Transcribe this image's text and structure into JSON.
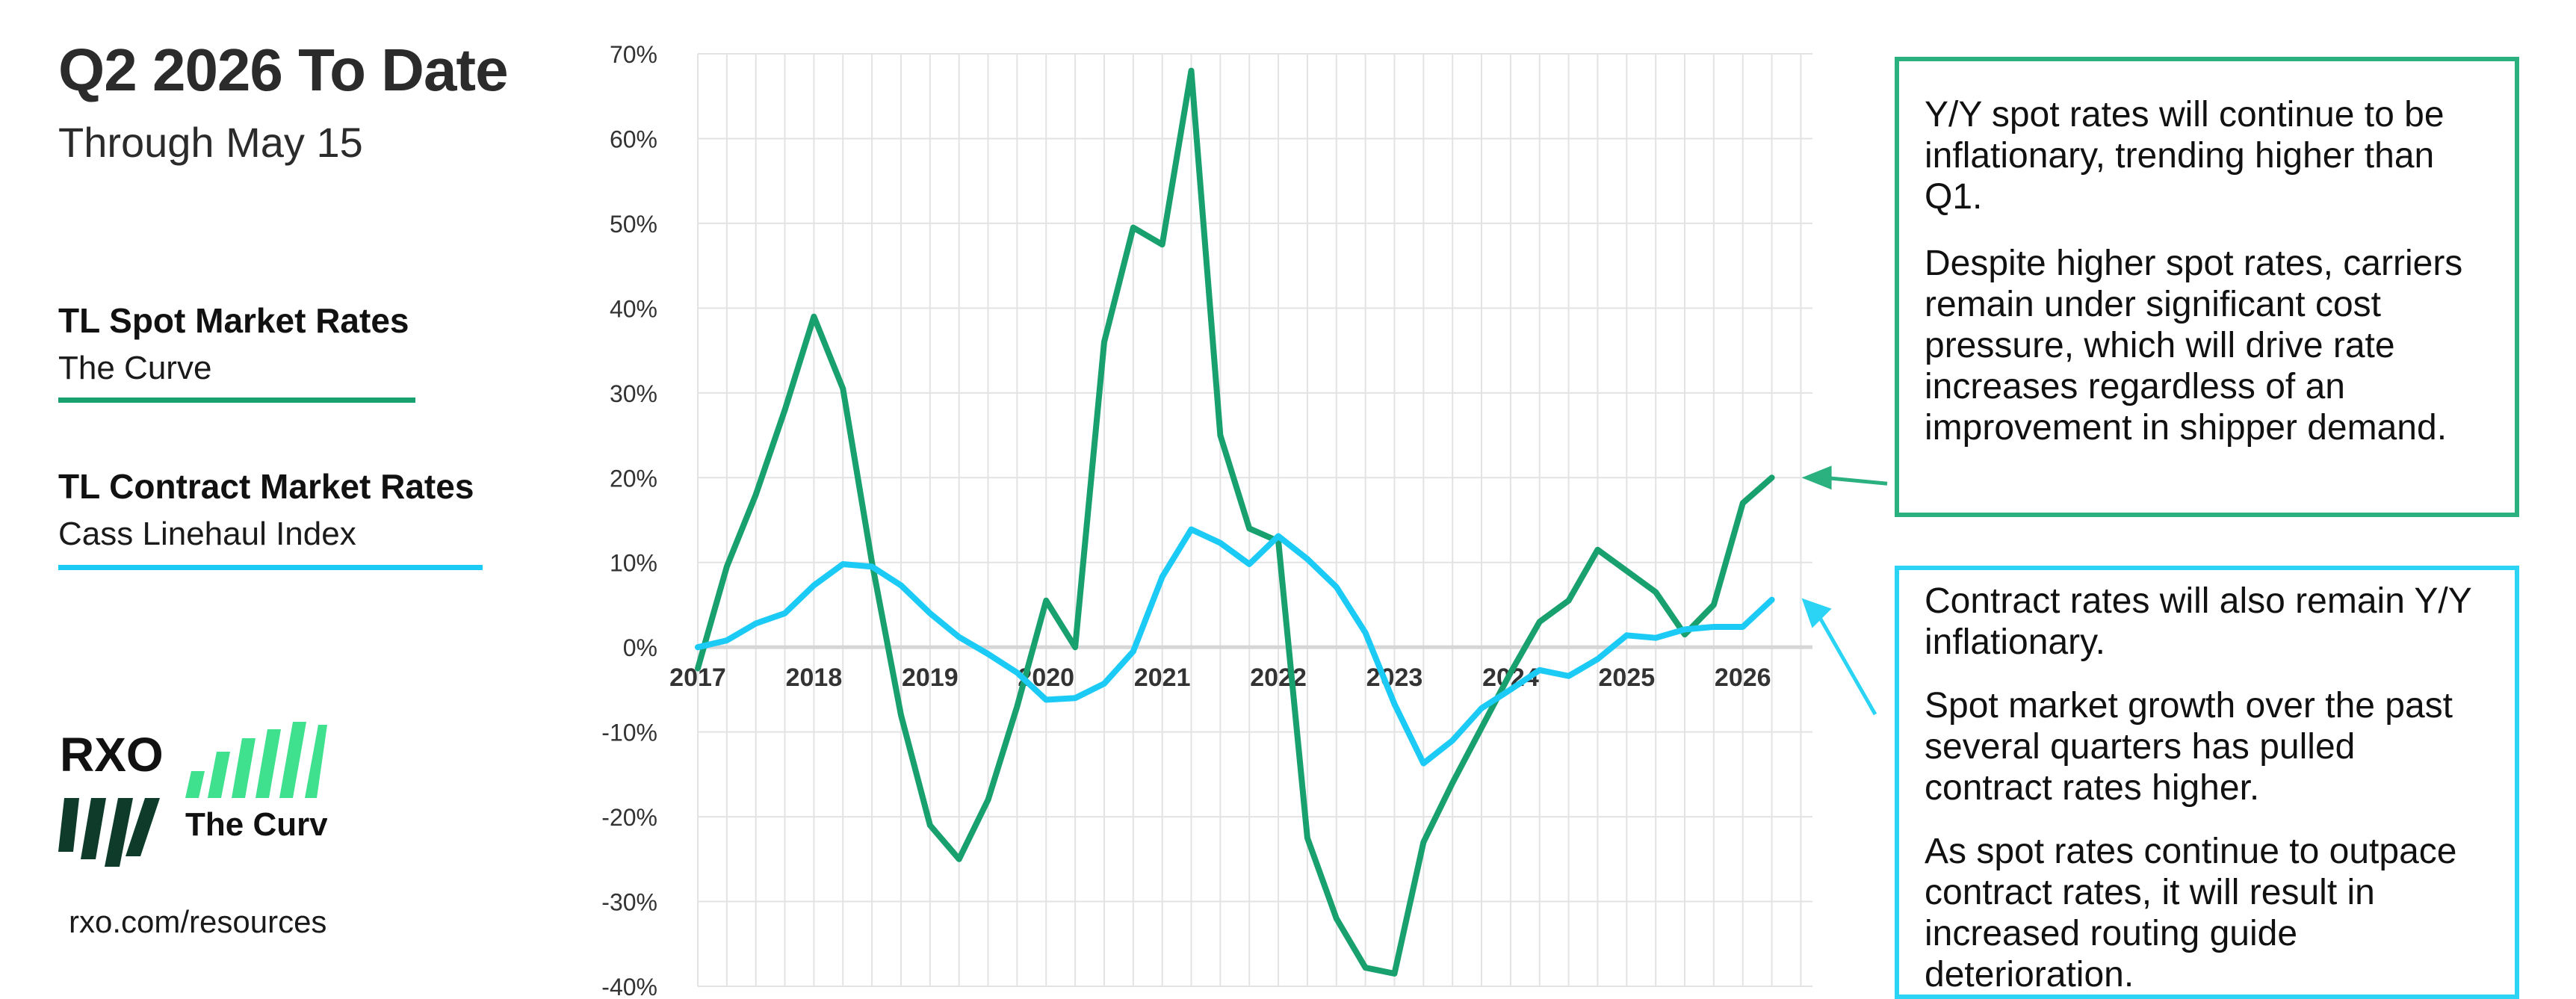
{
  "header": {
    "title": "Q2 2026 To Date",
    "subtitle": "Through May 15"
  },
  "legend": [
    {
      "title": "TL Spot Market Rates",
      "subtitle": "The Curve",
      "color": "#18a06e"
    },
    {
      "title": "TL Contract Market Rates",
      "subtitle": "Cass Linehaul Index",
      "color": "#1ccbf5"
    }
  ],
  "logo": {
    "brand": "RXO",
    "product": "The Curve"
  },
  "footer": {
    "link": "rxo.com/resources"
  },
  "notes": {
    "spot": [
      "Y/Y spot rates will continue to be inflationary, trending higher than Q1.",
      "Despite higher spot rates, carriers remain under significant cost pressure, which will drive rate increases regardless of an improvement in shipper demand."
    ],
    "contract": [
      "Contract rates will also remain Y/Y inflationary.",
      "Spot market growth over the past several quarters has pulled contract rates higher.",
      "As spot rates continue to outpace contract rates, it will result in increased routing guide deterioration."
    ]
  },
  "colors": {
    "spot": "#18a06e",
    "contract": "#1ccbf5",
    "spot_box": "#2bb07f",
    "contract_box": "#2bd4f5",
    "grid": "#e3e3e3",
    "zero_line": "#d6d6d6"
  },
  "chart_data": {
    "type": "line",
    "title": "",
    "xlabel": "",
    "ylabel": "",
    "ylim": [
      -40,
      70
    ],
    "y_ticks": [
      70,
      60,
      50,
      40,
      30,
      20,
      10,
      0,
      -10,
      -20,
      -30,
      -40
    ],
    "y_tick_labels": [
      "70%",
      "60%",
      "50%",
      "40%",
      "30%",
      "20%",
      "10%",
      "0%",
      "-10%",
      "-20%",
      "-30%",
      "-40%"
    ],
    "xlim": [
      2017,
      2026.6
    ],
    "x_ticks": [
      2017,
      2018,
      2019,
      2020,
      2021,
      2022,
      2023,
      2024,
      2025,
      2026
    ],
    "x_tick_labels": [
      "2017",
      "2018",
      "2019",
      "2020",
      "2021",
      "2022",
      "2023",
      "2024",
      "2025",
      "2026"
    ],
    "grid": true,
    "series": [
      {
        "name": "TL Spot Market Rates",
        "color": "#18a06e",
        "x": [
          2017.0,
          2017.25,
          2017.5,
          2017.75,
          2018.0,
          2018.25,
          2018.5,
          2018.75,
          2019.0,
          2019.25,
          2019.5,
          2019.75,
          2020.0,
          2020.25,
          2020.5,
          2020.75,
          2021.0,
          2021.25,
          2021.5,
          2021.75,
          2022.0,
          2022.25,
          2022.5,
          2022.75,
          2023.0,
          2023.25,
          2023.5,
          2023.75,
          2024.0,
          2024.25,
          2024.5,
          2024.75,
          2025.0,
          2025.25,
          2025.5,
          2025.75,
          2026.0,
          2026.25
        ],
        "values": [
          -2.5,
          9.5,
          18,
          28,
          39,
          30.5,
          10,
          -8,
          -21,
          -25,
          -18,
          -7,
          5.5,
          0,
          36,
          49.5,
          47.5,
          68,
          25,
          14,
          12.5,
          -22.5,
          -32,
          -37.8,
          -38.5,
          -23,
          -16,
          -9.5,
          -3,
          3,
          5.5,
          11.5,
          9,
          6.5,
          1.5,
          5,
          17,
          20
        ]
      },
      {
        "name": "TL Contract Market Rates",
        "color": "#1ccbf5",
        "x": [
          2017.0,
          2017.25,
          2017.5,
          2017.75,
          2018.0,
          2018.25,
          2018.5,
          2018.75,
          2019.0,
          2019.25,
          2019.5,
          2019.75,
          2020.0,
          2020.25,
          2020.5,
          2020.75,
          2021.0,
          2021.25,
          2021.5,
          2021.75,
          2022.0,
          2022.25,
          2022.5,
          2022.75,
          2023.0,
          2023.25,
          2023.5,
          2023.75,
          2024.0,
          2024.25,
          2024.5,
          2024.75,
          2025.0,
          2025.25,
          2025.5,
          2025.75,
          2026.0,
          2026.25
        ],
        "values": [
          0,
          0.8,
          2.8,
          4,
          7.3,
          9.8,
          9.5,
          7.3,
          4,
          1.2,
          -0.8,
          -3,
          -6.2,
          -6,
          -4.3,
          -0.5,
          8.3,
          13.9,
          12.3,
          9.8,
          13.1,
          10.4,
          7.1,
          1.7,
          -6.7,
          -13.7,
          -11,
          -7.2,
          -5,
          -2.7,
          -3.4,
          -1.4,
          1.4,
          1.1,
          2.1,
          2.4,
          2.4,
          5.6
        ]
      }
    ]
  }
}
